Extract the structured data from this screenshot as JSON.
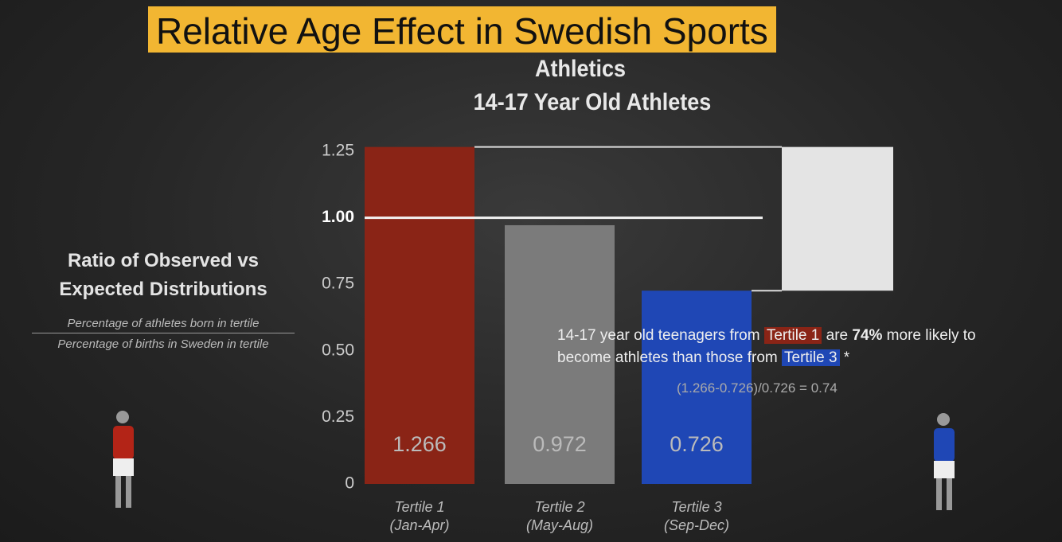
{
  "chart_data": {
    "type": "bar",
    "title": "Relative Age Effect in Swedish Sports",
    "subtitle": [
      "Athletics",
      "14-17 Year Old Athletes"
    ],
    "y_label": "Ratio of Observed vs Expected Distributions",
    "y_label_numerator": "Percentage of athletes born in tertile",
    "y_label_denominator": "Percentage of births in Sweden in tertile",
    "categories": [
      "Tertile 1\n(Jan-Apr)",
      "Tertile 2\n(May-Aug)",
      "Tertile 3\n(Sep-Dec)"
    ],
    "values": [
      1.266,
      0.972,
      0.726
    ],
    "colors": [
      "#8a2416",
      "#7b7b7b",
      "#1f47b5"
    ],
    "difference_color": "#e4e4e4",
    "ylim": [
      0,
      1.25
    ],
    "yticks": [
      0,
      0.25,
      {
        "value": 0.5,
        "label": "0.50"
      },
      0.75,
      {
        "value": 1,
        "label": "1.00"
      },
      1.25
    ],
    "reference_line": 1,
    "annotation": [
      "14-17 year old teenagers from ",
      "Tertile 1",
      " are ",
      "74%",
      " more likely to",
      "become athletes than those from ",
      "Tertile 3",
      " *"
    ],
    "formula": "(1.266-0.726)/0.726 = 0.74"
  }
}
